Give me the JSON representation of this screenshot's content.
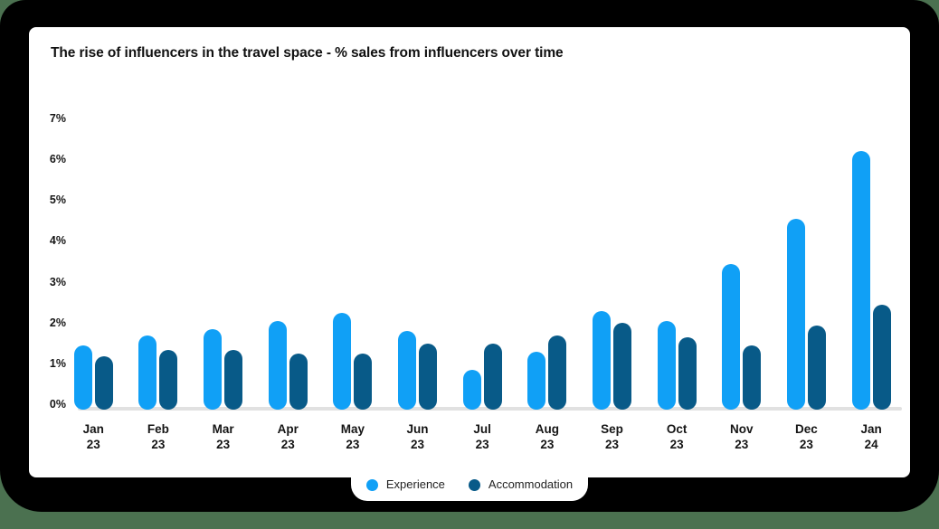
{
  "title": "The rise of influencers in the travel space - % sales from influencers over time",
  "colors": {
    "background": "#4b7150",
    "shell": "#000000",
    "card": "#ffffff",
    "axis_line": "#e1e1e1",
    "experience": "#10a0f6",
    "accommodation": "#085a88",
    "text": "#151515"
  },
  "chart_data": {
    "type": "bar",
    "title": "The rise of influencers in the travel space - % sales from influencers over time",
    "categories": [
      {
        "month": "Jan",
        "year": "23"
      },
      {
        "month": "Feb",
        "year": "23"
      },
      {
        "month": "Mar",
        "year": "23"
      },
      {
        "month": "Apr",
        "year": "23"
      },
      {
        "month": "May",
        "year": "23"
      },
      {
        "month": "Jun",
        "year": "23"
      },
      {
        "month": "Jul",
        "year": "23"
      },
      {
        "month": "Aug",
        "year": "23"
      },
      {
        "month": "Sep",
        "year": "23"
      },
      {
        "month": "Oct",
        "year": "23"
      },
      {
        "month": "Nov",
        "year": "23"
      },
      {
        "month": "Dec",
        "year": "23"
      },
      {
        "month": "Jan",
        "year": "24"
      }
    ],
    "series": [
      {
        "name": "Experience",
        "color": "#10a0f6",
        "values": [
          1.45,
          1.7,
          1.85,
          2.05,
          2.25,
          1.8,
          0.85,
          1.3,
          2.3,
          2.05,
          3.45,
          4.55,
          6.2
        ]
      },
      {
        "name": "Accommodation",
        "color": "#085a88",
        "values": [
          1.2,
          1.35,
          1.35,
          1.25,
          1.25,
          1.5,
          1.5,
          1.7,
          2.0,
          1.65,
          1.45,
          1.95,
          2.45
        ]
      }
    ],
    "y_ticks": [
      "0%",
      "1%",
      "2%",
      "3%",
      "4%",
      "5%",
      "6%",
      "7%"
    ],
    "ylim": [
      0,
      7
    ],
    "unit": "%",
    "grid": false,
    "legend_position": "bottom"
  }
}
